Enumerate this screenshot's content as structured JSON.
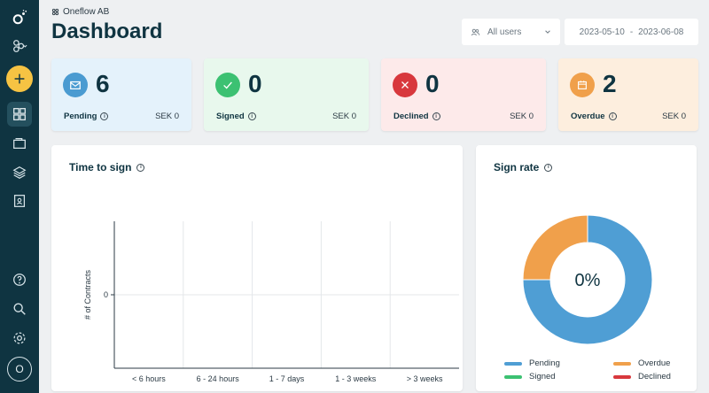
{
  "org": {
    "name": "Oneflow AB"
  },
  "page": {
    "title": "Dashboard"
  },
  "filters": {
    "users": "All users",
    "date_from": "2023-05-10",
    "date_separator": "-",
    "date_to": "2023-06-08"
  },
  "cards": [
    {
      "key": "pending",
      "label": "Pending",
      "count": "6",
      "amount": "SEK 0",
      "bg": "#e4f2fb",
      "badge": "#4a9bd1",
      "icon": "envelope-icon"
    },
    {
      "key": "signed",
      "label": "Signed",
      "count": "0",
      "amount": "SEK 0",
      "bg": "#e8f8ed",
      "badge": "#3cc172",
      "icon": "check-icon"
    },
    {
      "key": "declined",
      "label": "Declined",
      "count": "0",
      "amount": "SEK 0",
      "bg": "#fdeaea",
      "badge": "#d8383d",
      "icon": "x-icon"
    },
    {
      "key": "overdue",
      "label": "Overdue",
      "count": "2",
      "amount": "SEK 0",
      "bg": "#fdeede",
      "badge": "#f0a04b",
      "icon": "calendar-icon"
    }
  ],
  "time_to_sign": {
    "title": "Time to sign",
    "chart_data": {
      "type": "bar",
      "categories": [
        "< 6 hours",
        "6 - 24 hours",
        "1 - 7 days",
        "1 - 3 weeks",
        "> 3 weeks"
      ],
      "values": [
        0,
        0,
        0,
        0,
        0
      ],
      "ylabel": "# of Contracts",
      "yticks": [
        "0"
      ],
      "ylim": [
        -1,
        1
      ],
      "grid": true
    }
  },
  "sign_rate": {
    "title": "Sign rate",
    "center_label": "0%",
    "chart_data": {
      "type": "pie",
      "labels": [
        "Pending",
        "Overdue",
        "Signed",
        "Declined"
      ],
      "values": [
        6,
        2,
        0,
        0
      ],
      "colors": [
        "#4f9ed4",
        "#f0a04b",
        "#3cc172",
        "#d8383d"
      ],
      "legend": "bottom"
    }
  },
  "sidebar": {
    "items": [
      "logo-icon",
      "workspace-icon",
      "add-icon",
      "dashboard-icon",
      "documents-icon",
      "templates-icon",
      "contacts-icon",
      "help-icon",
      "search-icon",
      "settings-icon"
    ],
    "avatar": "O"
  }
}
